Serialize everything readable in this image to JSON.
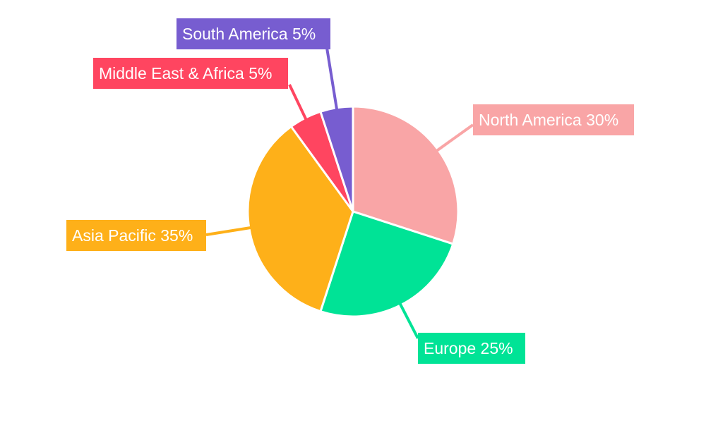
{
  "chart_data": {
    "type": "pie",
    "start_angle": "12 o'clock, clockwise",
    "legend": "none",
    "slices": [
      {
        "label": "North America",
        "value": 30,
        "text": "North America 30%",
        "color": "#f9a5a6"
      },
      {
        "label": "Europe",
        "value": 25,
        "text": "Europe 25%",
        "color": "#00e396"
      },
      {
        "label": "Asia Pacific",
        "value": 35,
        "text": "Asia Pacific 35%",
        "color": "#feb019"
      },
      {
        "label": "Middle East & Africa",
        "value": 5,
        "text": "Middle East & Africa 5%",
        "color": "#ff4560"
      },
      {
        "label": "South America",
        "value": 5,
        "text": "South America 5%",
        "color": "#775dd0"
      }
    ]
  }
}
